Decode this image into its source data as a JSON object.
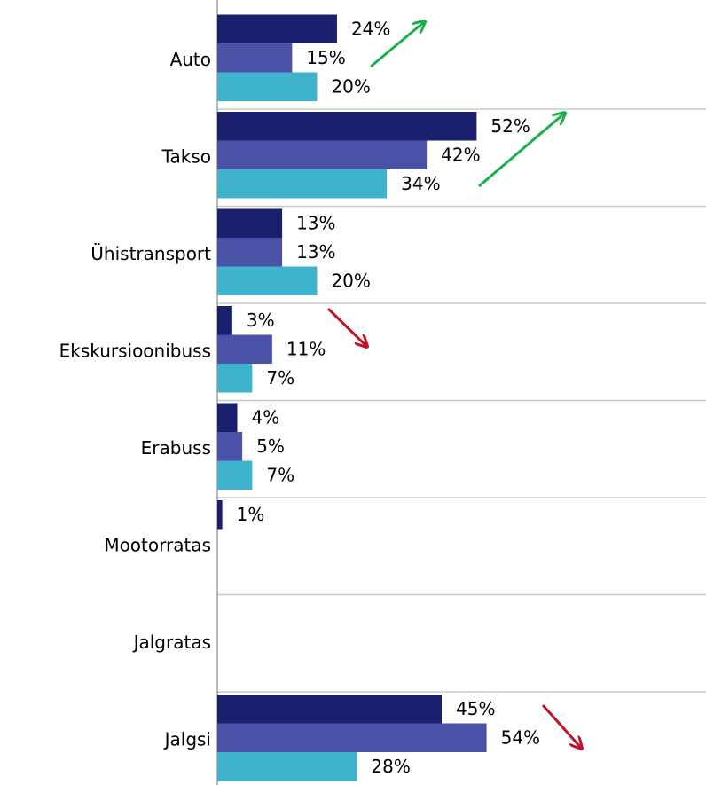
{
  "chart_data": {
    "type": "hbar",
    "categories": [
      "Auto",
      "Takso",
      "Ühistransport",
      "Ekskursioonibuss",
      "Erabuss",
      "Mootorratas",
      "Jalgratas",
      "Jalgsi"
    ],
    "series": [
      {
        "color": "#1a1f6e",
        "values": [
          24,
          52,
          13,
          3,
          4,
          1,
          null,
          45
        ],
        "value_labels": [
          "24%",
          "52%",
          "13%",
          "3%",
          "4%",
          "1%",
          null,
          "45%"
        ]
      },
      {
        "color": "#4a52a8",
        "values": [
          15,
          42,
          13,
          11,
          5,
          null,
          null,
          54
        ],
        "value_labels": [
          "15%",
          "42%",
          "13%",
          "11%",
          "5%",
          null,
          null,
          "54%"
        ]
      },
      {
        "color": "#3fb3cc",
        "values": [
          20,
          34,
          20,
          7,
          7,
          null,
          null,
          28
        ],
        "value_labels": [
          "20%",
          "34%",
          "20%",
          "7%",
          "7%",
          null,
          null,
          "28%"
        ]
      }
    ],
    "xlim": [
      0,
      98
    ]
  }
}
